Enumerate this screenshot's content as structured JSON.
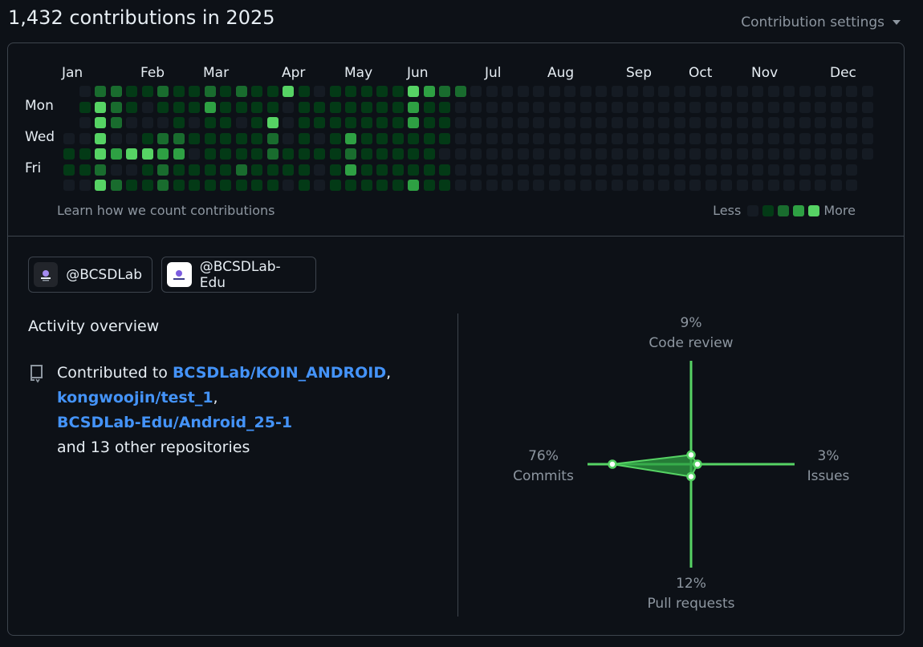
{
  "header": {
    "title": "1,432 contributions in 2025",
    "settings_label": "Contribution settings"
  },
  "calendar": {
    "months": [
      "Jan",
      "Feb",
      "Mar",
      "Apr",
      "May",
      "Jun",
      "Jul",
      "Aug",
      "Sep",
      "Oct",
      "Nov",
      "Dec"
    ],
    "days": [
      "Mon",
      "Wed",
      "Fri"
    ],
    "learn_label": "Learn how we count contributions",
    "legend_less": "Less",
    "legend_more": "More",
    "level_colors": [
      "#151b23",
      "#033a16",
      "#196c2e",
      "#2ea043",
      "#56d364"
    ],
    "weeks": [
      [
        -1,
        -1,
        -1,
        0,
        1,
        1,
        0
      ],
      [
        0,
        1,
        0,
        0,
        1,
        1,
        0
      ],
      [
        2,
        4,
        4,
        4,
        4,
        2,
        4
      ],
      [
        2,
        2,
        2,
        0,
        3,
        0,
        2
      ],
      [
        1,
        1,
        0,
        0,
        4,
        0,
        1
      ],
      [
        1,
        0,
        0,
        1,
        4,
        1,
        1
      ],
      [
        2,
        1,
        0,
        2,
        3,
        2,
        2
      ],
      [
        1,
        1,
        1,
        2,
        3,
        1,
        1
      ],
      [
        1,
        1,
        0,
        1,
        0,
        1,
        1
      ],
      [
        2,
        3,
        1,
        1,
        1,
        1,
        1
      ],
      [
        1,
        1,
        1,
        1,
        1,
        1,
        1
      ],
      [
        2,
        1,
        0,
        1,
        1,
        2,
        1
      ],
      [
        1,
        1,
        1,
        1,
        1,
        1,
        1
      ],
      [
        1,
        1,
        4,
        2,
        2,
        1,
        1
      ],
      [
        4,
        0,
        0,
        0,
        1,
        1,
        0
      ],
      [
        1,
        1,
        1,
        1,
        1,
        1,
        1
      ],
      [
        0,
        1,
        1,
        0,
        1,
        0,
        0
      ],
      [
        1,
        1,
        1,
        1,
        1,
        1,
        1
      ],
      [
        1,
        1,
        1,
        3,
        2,
        3,
        1
      ],
      [
        1,
        1,
        1,
        1,
        1,
        1,
        1
      ],
      [
        1,
        1,
        1,
        1,
        1,
        1,
        1
      ],
      [
        1,
        1,
        1,
        1,
        1,
        1,
        1
      ],
      [
        4,
        3,
        3,
        1,
        1,
        1,
        3
      ],
      [
        3,
        1,
        1,
        1,
        1,
        1,
        1
      ],
      [
        2,
        1,
        1,
        1,
        0,
        1,
        1
      ],
      [
        2,
        0,
        0,
        0,
        0,
        0,
        0
      ],
      [
        0,
        0,
        0,
        0,
        0,
        0,
        0
      ],
      [
        0,
        0,
        0,
        0,
        0,
        0,
        0
      ],
      [
        0,
        0,
        0,
        0,
        0,
        0,
        0
      ],
      [
        0,
        0,
        0,
        0,
        0,
        0,
        0
      ],
      [
        0,
        0,
        0,
        0,
        0,
        0,
        0
      ],
      [
        0,
        0,
        0,
        0,
        0,
        0,
        0
      ],
      [
        0,
        0,
        0,
        0,
        0,
        0,
        0
      ],
      [
        0,
        0,
        0,
        0,
        0,
        0,
        0
      ],
      [
        0,
        0,
        0,
        0,
        0,
        0,
        0
      ],
      [
        0,
        0,
        0,
        0,
        0,
        0,
        0
      ],
      [
        0,
        0,
        0,
        0,
        0,
        0,
        0
      ],
      [
        0,
        0,
        0,
        0,
        0,
        0,
        0
      ],
      [
        0,
        0,
        0,
        0,
        0,
        0,
        0
      ],
      [
        0,
        0,
        0,
        0,
        0,
        0,
        0
      ],
      [
        0,
        0,
        0,
        0,
        0,
        0,
        0
      ],
      [
        0,
        0,
        0,
        0,
        0,
        0,
        0
      ],
      [
        0,
        0,
        0,
        0,
        0,
        0,
        0
      ],
      [
        0,
        0,
        0,
        0,
        0,
        0,
        0
      ],
      [
        0,
        0,
        0,
        0,
        0,
        0,
        0
      ],
      [
        0,
        0,
        0,
        0,
        0,
        0,
        0
      ],
      [
        0,
        0,
        0,
        0,
        0,
        0,
        0
      ],
      [
        0,
        0,
        0,
        0,
        0,
        0,
        0
      ],
      [
        0,
        0,
        0,
        0,
        0,
        0,
        0
      ],
      [
        0,
        0,
        0,
        0,
        0,
        0,
        0
      ],
      [
        0,
        0,
        0,
        0,
        0,
        0,
        0
      ],
      [
        0,
        0,
        0,
        0,
        0,
        -1,
        -1
      ]
    ]
  },
  "orgs": [
    {
      "label": "@BCSDLab"
    },
    {
      "label": "@BCSDLab-Edu"
    }
  ],
  "activity": {
    "title": "Activity overview",
    "contributed_prefix": "Contributed to ",
    "repos": [
      "BCSDLab/KOIN_ANDROID",
      "kongwoojin/test_1",
      "BCSDLab-Edu/Android_25-1"
    ],
    "suffix": "and 13 other repositories"
  },
  "radar": {
    "color": "#56d364",
    "fill_color": "#2ea043",
    "axes": [
      {
        "name": "Code review",
        "pct_label": "9%",
        "value": 9
      },
      {
        "name": "Issues",
        "pct_label": "3%",
        "value": 3
      },
      {
        "name": "Pull requests",
        "pct_label": "12%",
        "value": 12
      },
      {
        "name": "Commits",
        "pct_label": "76%",
        "value": 76
      }
    ]
  }
}
